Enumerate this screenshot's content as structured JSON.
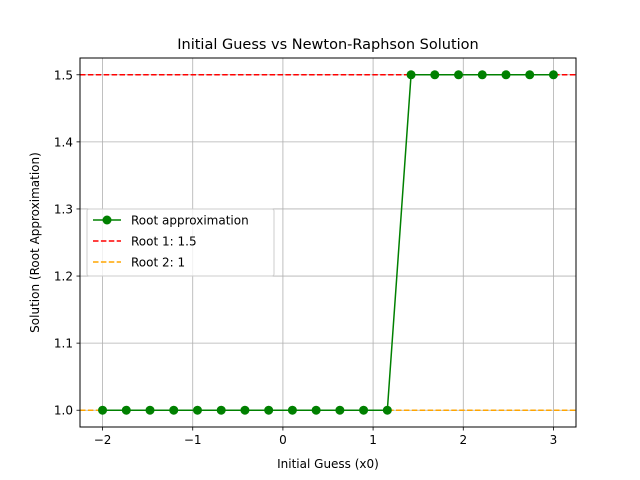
{
  "chart_data": {
    "type": "line",
    "title": "Initial Guess vs Newton-Raphson Solution",
    "xlabel": "Initial Guess (x0)",
    "ylabel": "Solution (Root Approximation)",
    "xlim": [
      -2.25,
      3.25
    ],
    "ylim": [
      0.975,
      1.525
    ],
    "xticks": [
      -2,
      -1,
      0,
      1,
      2,
      3
    ],
    "xtick_labels": [
      "−2",
      "−1",
      "0",
      "1",
      "2",
      "3"
    ],
    "yticks": [
      1.0,
      1.1,
      1.2,
      1.3,
      1.4,
      1.5
    ],
    "ytick_labels": [
      "1.0",
      "1.1",
      "1.2",
      "1.3",
      "1.4",
      "1.5"
    ],
    "grid": true,
    "legend_position": "center-left",
    "series": [
      {
        "name": "Root approximation",
        "color": "#008000",
        "marker": "circle",
        "x": [
          -2.0,
          -1.7368,
          -1.4737,
          -1.2105,
          -0.9474,
          -0.6842,
          -0.4211,
          -0.1579,
          0.1053,
          0.3684,
          0.6316,
          0.8947,
          1.1579,
          1.4211,
          1.6842,
          1.9474,
          2.2105,
          2.4737,
          2.7368,
          3.0
        ],
        "y": [
          1.0,
          1.0,
          1.0,
          1.0,
          1.0,
          1.0,
          1.0,
          1.0,
          1.0,
          1.0,
          1.0,
          1.0,
          1.0,
          1.5,
          1.5,
          1.5,
          1.5,
          1.5,
          1.5,
          1.5
        ]
      }
    ],
    "reference_lines": [
      {
        "name": "Root 1: 1.5",
        "y": 1.5,
        "color": "#ff0000",
        "style": "dashed"
      },
      {
        "name": "Root 2: 1",
        "y": 1.0,
        "color": "#ffa500",
        "style": "dashed"
      }
    ]
  }
}
